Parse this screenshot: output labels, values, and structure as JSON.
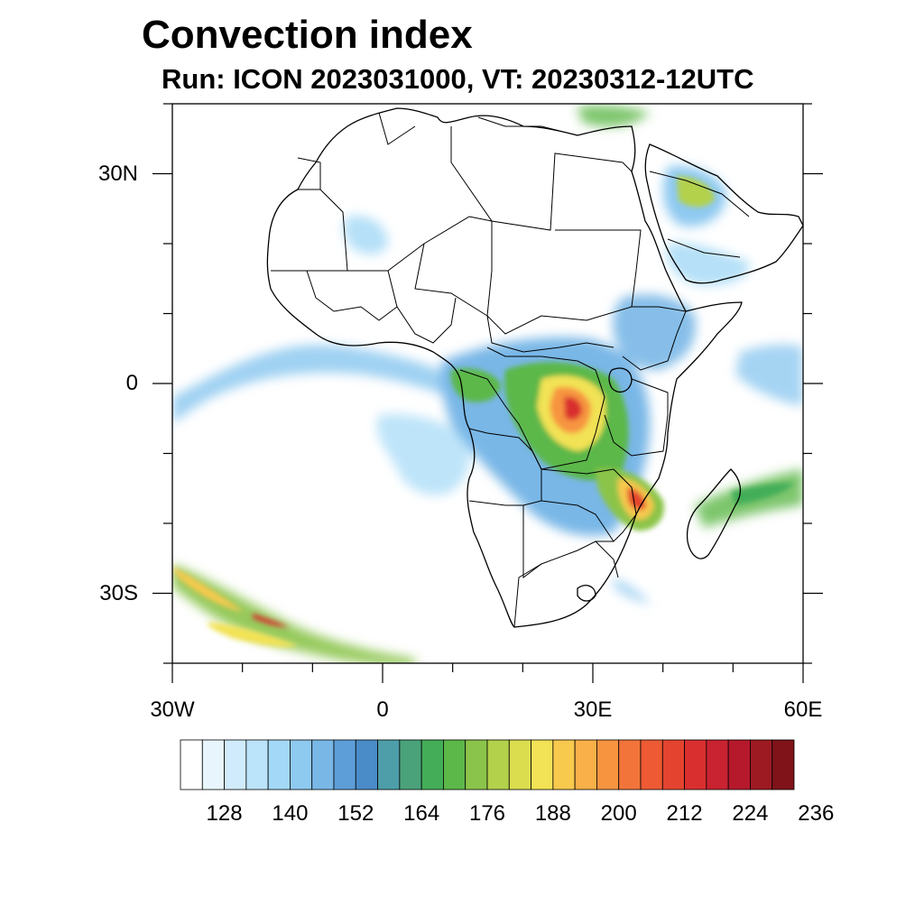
{
  "title": "Convection index",
  "subtitle": "Run: ICON 2023031000,  VT: 20230312-12UTC",
  "axes": {
    "lat_ticks": [
      {
        "label": "30N",
        "value": 30
      },
      {
        "label": "0",
        "value": 0
      },
      {
        "label": "30S",
        "value": -30
      }
    ],
    "lon_ticks": [
      {
        "label": "30W",
        "value": -30
      },
      {
        "label": "0",
        "value": 0
      },
      {
        "label": "30E",
        "value": 30
      },
      {
        "label": "60E",
        "value": 60
      }
    ],
    "lon_range": [
      -30,
      60
    ],
    "lat_range": [
      -40,
      40
    ]
  },
  "colorbar": {
    "colors": [
      "#ffffff",
      "#e8f5fd",
      "#d0ebfb",
      "#bbe3fa",
      "#a3d8f6",
      "#8ec9f0",
      "#79b7e7",
      "#5e9ed8",
      "#4a8cc8",
      "#4d9ea8",
      "#4aa27a",
      "#43ad58",
      "#5cb848",
      "#8bc44a",
      "#b3d14b",
      "#dbdd4f",
      "#f2e255",
      "#f7c94d",
      "#f9b048",
      "#f79440",
      "#f3743a",
      "#ed5a34",
      "#e4442f",
      "#d92f2f",
      "#c92230",
      "#b5192b",
      "#9e1a22",
      "#7f1319"
    ],
    "labels": [
      "128",
      "140",
      "152",
      "164",
      "176",
      "188",
      "200",
      "212",
      "224",
      "236"
    ]
  },
  "legend_icons": {
    "colorbar": "colorbar-legend"
  }
}
